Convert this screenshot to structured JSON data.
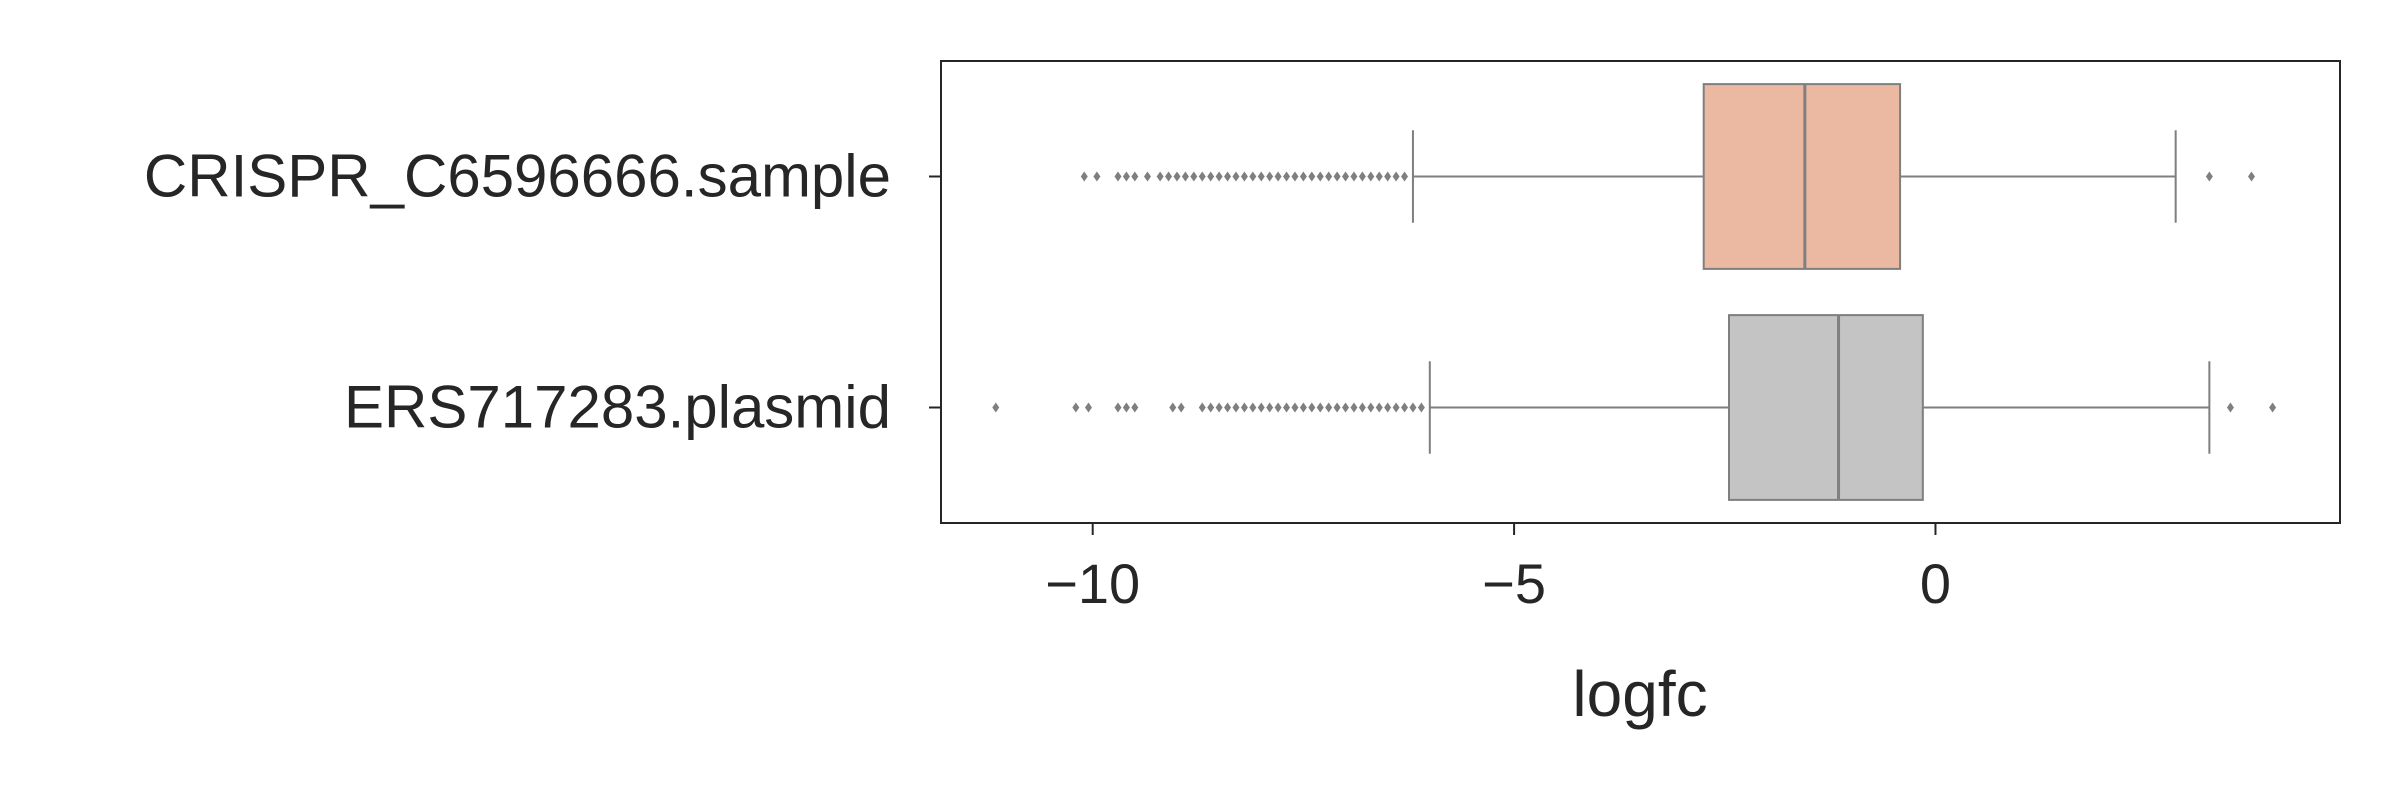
{
  "chart_data": {
    "type": "boxplot",
    "orientation": "horizontal",
    "xlabel": "logfc",
    "xlim": [
      -11.8,
      4.8
    ],
    "xticks": [
      -10,
      -5,
      0
    ],
    "xtick_labels": [
      "−10",
      "−5",
      "0"
    ],
    "grid": false,
    "categories": [
      "CRISPR_C6596666.sample",
      "ERS717283.plasmid"
    ],
    "series": [
      {
        "category": "CRISPR_C6596666.sample",
        "color": "#ebb8a1",
        "whisker_low": -6.2,
        "q1": -2.75,
        "median": -1.55,
        "q3": -0.42,
        "whisker_high": 2.85,
        "outliers": [
          -10.1,
          -9.95,
          -9.7,
          -9.6,
          -9.5,
          -9.35,
          -9.2,
          -9.1,
          -9.0,
          -8.9,
          -8.8,
          -8.7,
          -8.6,
          -8.5,
          -8.4,
          -8.3,
          -8.2,
          -8.1,
          -8.0,
          -7.9,
          -7.8,
          -7.7,
          -7.6,
          -7.5,
          -7.4,
          -7.3,
          -7.2,
          -7.1,
          -7.0,
          -6.9,
          -6.8,
          -6.7,
          -6.6,
          -6.5,
          -6.4,
          -6.3,
          3.25,
          3.75
        ]
      },
      {
        "category": "ERS717283.plasmid",
        "color": "#c4c4c4",
        "whisker_low": -6.0,
        "q1": -2.45,
        "median": -1.15,
        "q3": -0.15,
        "whisker_high": 3.25,
        "outliers": [
          -11.15,
          -10.2,
          -10.05,
          -9.7,
          -9.6,
          -9.5,
          -9.05,
          -8.95,
          -8.7,
          -8.6,
          -8.5,
          -8.4,
          -8.3,
          -8.2,
          -8.1,
          -8.0,
          -7.9,
          -7.8,
          -7.7,
          -7.6,
          -7.5,
          -7.4,
          -7.3,
          -7.2,
          -7.1,
          -7.0,
          -6.9,
          -6.8,
          -6.7,
          -6.6,
          -6.5,
          -6.4,
          -6.3,
          -6.2,
          -6.1,
          3.5,
          4.0
        ]
      }
    ]
  }
}
